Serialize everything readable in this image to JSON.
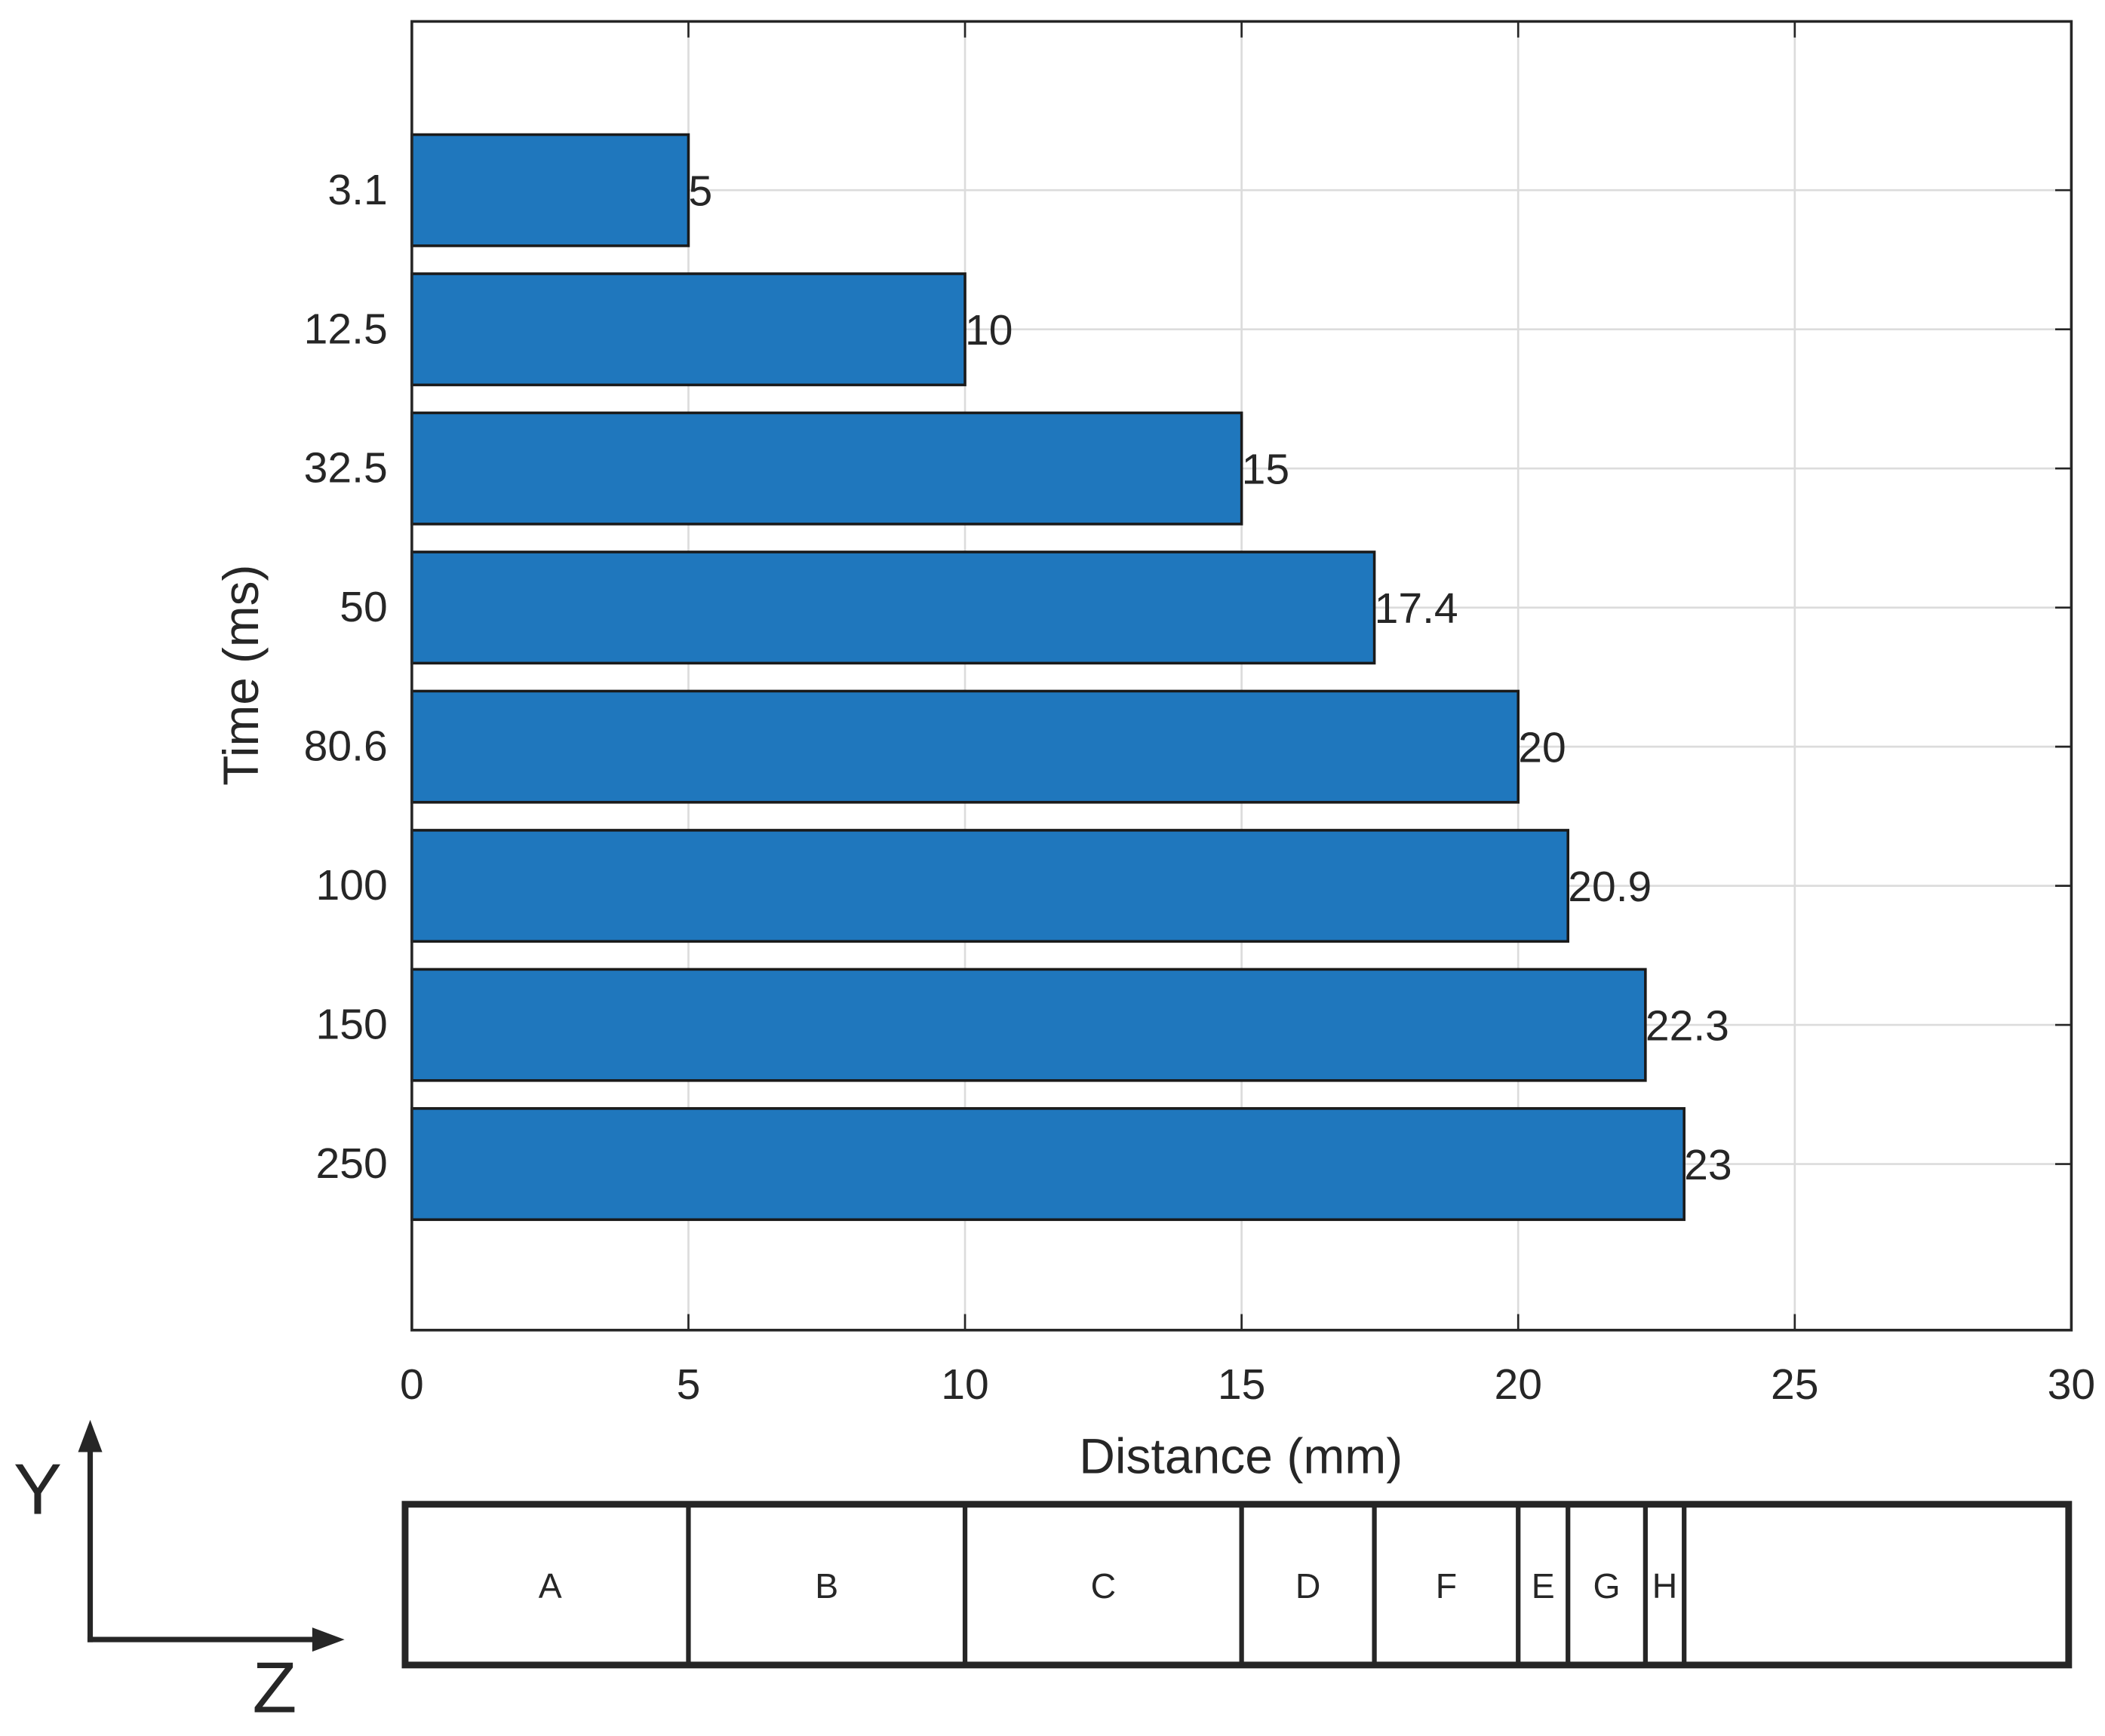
{
  "chart_data": {
    "type": "bar",
    "orientation": "horizontal",
    "xlabel": "Distance (mm)",
    "ylabel": "Time (ms)",
    "categories": [
      "3.1",
      "12.5",
      "32.5",
      "50",
      "80.6",
      "100",
      "150",
      "250"
    ],
    "values": [
      5,
      10,
      15,
      17.4,
      20,
      20.9,
      22.3,
      23
    ],
    "color": "#1f77bd",
    "xlim": [
      0,
      30
    ],
    "xticks": [
      0,
      5,
      10,
      15,
      20,
      25,
      30
    ],
    "grid": true
  },
  "strip": {
    "labels": [
      "A",
      "B",
      "C",
      "D",
      "F",
      "E",
      "G",
      "H"
    ]
  },
  "axes_icon": {
    "y_label": "Y",
    "z_label": "Z"
  }
}
